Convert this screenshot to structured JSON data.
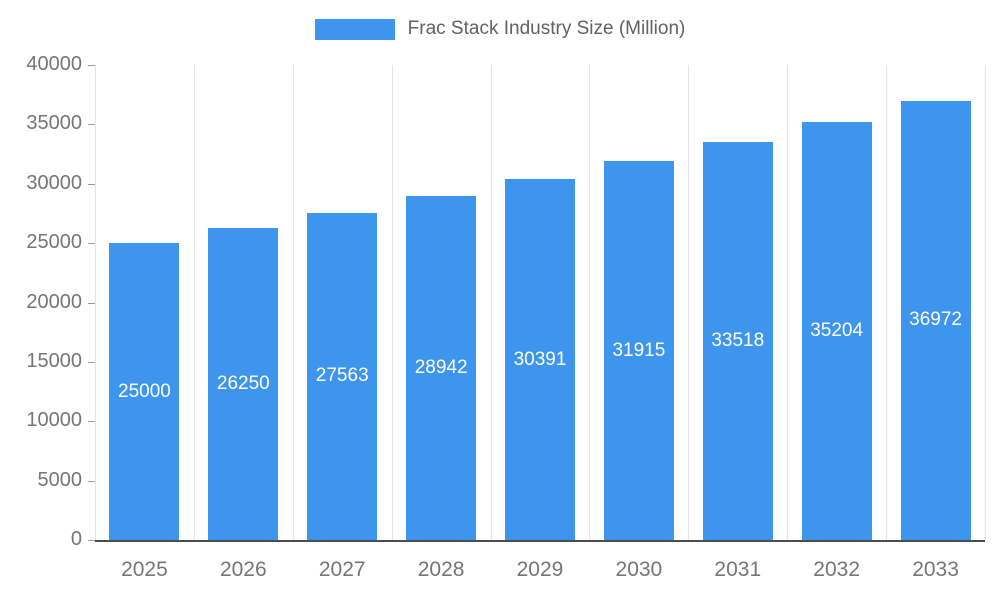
{
  "chart_data": {
    "type": "bar",
    "title": "Frac Stack Industry Size (Million)",
    "categories": [
      "2025",
      "2026",
      "2027",
      "2028",
      "2029",
      "2030",
      "2031",
      "2032",
      "2033"
    ],
    "values": [
      25000,
      26250,
      27563,
      28942,
      30391,
      31915,
      33518,
      35204,
      36972
    ],
    "data_labels": [
      "25000",
      "26250",
      "27563",
      "28942",
      "30391",
      "31915",
      "33518",
      "35204",
      "36972"
    ],
    "xlabel": "",
    "ylabel": "",
    "ylim": [
      0,
      40000
    ],
    "ytick_step": 5000,
    "ytick_labels": [
      "0",
      "5000",
      "10000",
      "15000",
      "20000",
      "25000",
      "30000",
      "35000",
      "40000"
    ],
    "grid": "vertical-only",
    "legend_position": "top-center",
    "colors": {
      "bar": "#3E95ED",
      "axis_text": "#757575",
      "legend_text": "#616161",
      "gridline": "#E3E3E3",
      "axis_line": "#4D4D4D",
      "tick": "#9A9A9A",
      "data_label": "#FFFFFF",
      "background": "#FFFFFF"
    }
  }
}
